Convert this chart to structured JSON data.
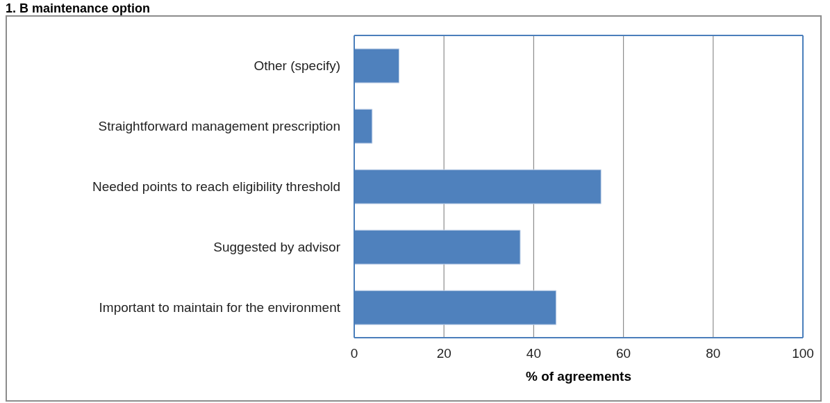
{
  "chart_data": {
    "type": "bar",
    "title": "1. B maintenance option",
    "orientation": "horizontal",
    "categories": [
      "Other (specify)",
      "Straightforward management prescription",
      "Needed points to reach eligibility threshold",
      "Suggested by advisor",
      "Important to maintain for the environment"
    ],
    "values": [
      10,
      4,
      55,
      37,
      45
    ],
    "color": "#4f81bd",
    "xlabel": "% of agreements",
    "xlim": [
      0,
      100
    ],
    "xticks": [
      0,
      20,
      40,
      60,
      80,
      100
    ],
    "grid": "x"
  }
}
